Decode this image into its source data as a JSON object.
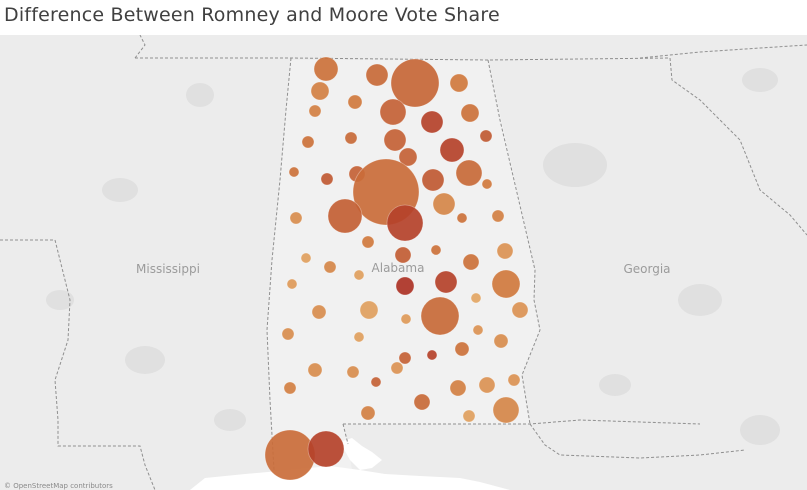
{
  "title": "Difference Between Romney and Moore Vote Share",
  "states": {
    "mississippi": "Mississippi",
    "alabama": "Alabama",
    "georgia": "Georgia"
  },
  "attribution": "© OpenStreetMap contributors",
  "colors": {
    "background": "#e9e9e9",
    "land": "#efefef",
    "water": "#ffffff",
    "border": "#8f8f8f",
    "low": "#ebb974",
    "mid": "#d07a3e",
    "high": "#a92a22"
  },
  "bubbles": [
    [
      326,
      69,
      12,
      0.55
    ],
    [
      377,
      75,
      11,
      0.6
    ],
    [
      415,
      83,
      24,
      0.62
    ],
    [
      459,
      83,
      9,
      0.5
    ],
    [
      320,
      91,
      9,
      0.45
    ],
    [
      355,
      102,
      7,
      0.5
    ],
    [
      393,
      112,
      13,
      0.65
    ],
    [
      432,
      122,
      11,
      0.85
    ],
    [
      470,
      113,
      9,
      0.55
    ],
    [
      315,
      111,
      6,
      0.45
    ],
    [
      486,
      136,
      6,
      0.7
    ],
    [
      351,
      138,
      6,
      0.6
    ],
    [
      395,
      140,
      11,
      0.65
    ],
    [
      452,
      150,
      12,
      0.85
    ],
    [
      308,
      142,
      6,
      0.55
    ],
    [
      408,
      157,
      9,
      0.65
    ],
    [
      357,
      174,
      8,
      0.65
    ],
    [
      469,
      173,
      13,
      0.6
    ],
    [
      433,
      180,
      11,
      0.7
    ],
    [
      327,
      179,
      6,
      0.7
    ],
    [
      294,
      172,
      5,
      0.55
    ],
    [
      487,
      184,
      5,
      0.5
    ],
    [
      386,
      192,
      33,
      0.58
    ],
    [
      405,
      223,
      18,
      0.85
    ],
    [
      345,
      216,
      17,
      0.67
    ],
    [
      444,
      204,
      11,
      0.4
    ],
    [
      462,
      218,
      5,
      0.55
    ],
    [
      498,
      216,
      6,
      0.45
    ],
    [
      296,
      218,
      6,
      0.35
    ],
    [
      368,
      242,
      6,
      0.5
    ],
    [
      403,
      255,
      8,
      0.68
    ],
    [
      436,
      250,
      5,
      0.55
    ],
    [
      471,
      262,
      8,
      0.55
    ],
    [
      505,
      251,
      8,
      0.3
    ],
    [
      306,
      258,
      5,
      0.2
    ],
    [
      330,
      267,
      6,
      0.4
    ],
    [
      359,
      275,
      5,
      0.2
    ],
    [
      506,
      284,
      14,
      0.5
    ],
    [
      446,
      282,
      11,
      0.85
    ],
    [
      405,
      286,
      9,
      0.95
    ],
    [
      292,
      284,
      5,
      0.25
    ],
    [
      476,
      298,
      5,
      0.15
    ],
    [
      440,
      316,
      19,
      0.6
    ],
    [
      369,
      310,
      9,
      0.2
    ],
    [
      319,
      312,
      7,
      0.35
    ],
    [
      406,
      319,
      5,
      0.25
    ],
    [
      520,
      310,
      8,
      0.3
    ],
    [
      288,
      334,
      6,
      0.35
    ],
    [
      359,
      337,
      5,
      0.2
    ],
    [
      478,
      330,
      5,
      0.3
    ],
    [
      501,
      341,
      7,
      0.35
    ],
    [
      462,
      349,
      7,
      0.55
    ],
    [
      432,
      355,
      5,
      0.85
    ],
    [
      405,
      358,
      6,
      0.65
    ],
    [
      315,
      370,
      7,
      0.35
    ],
    [
      353,
      372,
      6,
      0.35
    ],
    [
      397,
      368,
      6,
      0.3
    ],
    [
      376,
      382,
      5,
      0.65
    ],
    [
      514,
      380,
      6,
      0.3
    ],
    [
      487,
      385,
      8,
      0.3
    ],
    [
      458,
      388,
      8,
      0.45
    ],
    [
      290,
      388,
      6,
      0.45
    ],
    [
      422,
      402,
      8,
      0.6
    ],
    [
      506,
      410,
      13,
      0.4
    ],
    [
      368,
      413,
      7,
      0.45
    ],
    [
      469,
      416,
      6,
      0.2
    ],
    [
      290,
      455,
      25,
      0.58
    ],
    [
      326,
      449,
      18,
      0.85
    ]
  ]
}
